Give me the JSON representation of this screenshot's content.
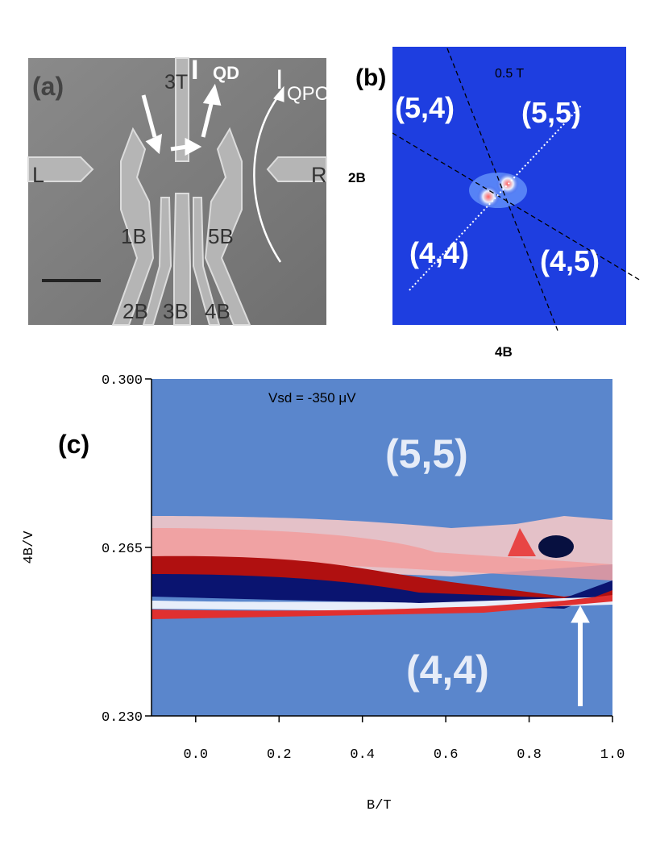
{
  "panel_a": {
    "label": "(a)",
    "gates": [
      "3T",
      "L",
      "R",
      "1B",
      "5B",
      "2B",
      "3B",
      "4B"
    ],
    "current_qd": {
      "symbol": "I",
      "subscript": "QD"
    },
    "current_qpc": {
      "symbol": "I",
      "subscript": "QPC"
    }
  },
  "panel_b": {
    "label": "(b)",
    "field": "0.5 T",
    "regions": [
      "(5,4)",
      "(5,5)",
      "(4,4)",
      "(4,5)"
    ],
    "y_axis_label": "2B",
    "x_axis_label": "4B"
  },
  "panel_c": {
    "label": "(c)",
    "annotation": "Vsd = -350 μV",
    "regions": [
      "(5,5)",
      "(4,4)"
    ],
    "x_label": "B/T",
    "y_label": "4B/V",
    "xlim": [
      -0.106,
      1.0
    ],
    "ylim": [
      0.23,
      0.3
    ],
    "xticks": [
      {
        "value": 0,
        "label": "0.0"
      },
      0.2,
      0.4,
      0.6,
      0.8,
      {
        "value": 1,
        "label": "1.0"
      }
    ],
    "yticks": [
      {
        "value": 0.23,
        "label": "0.230"
      },
      0.265,
      {
        "value": 0.3,
        "label": "0.300"
      }
    ]
  }
}
